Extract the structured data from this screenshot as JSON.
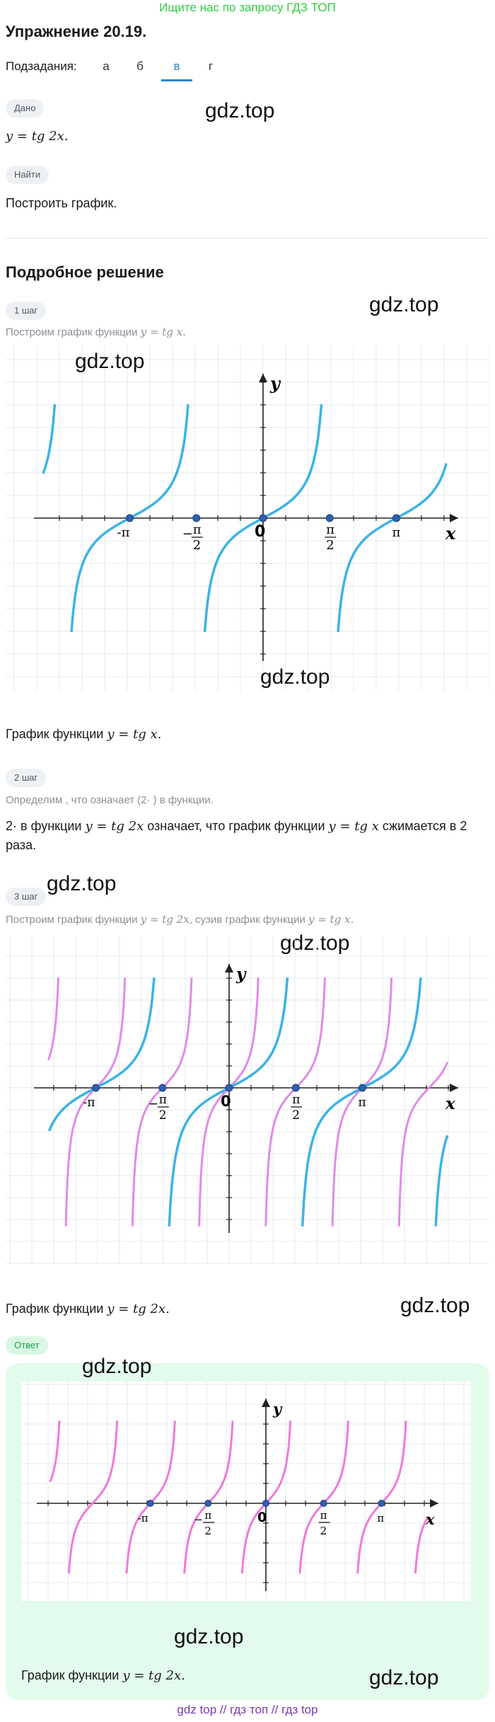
{
  "top_link": "Ищите нас по запросу ГДЗ ТОП",
  "title": "Упражнение 20.19.",
  "subtasks": {
    "label": "Подзадания:",
    "items": [
      "а",
      "б",
      "в",
      "г"
    ],
    "active": "в"
  },
  "given": {
    "label": "Дано",
    "formula": "y = tg 2x."
  },
  "find": {
    "label": "Найти",
    "text": "Построить график."
  },
  "solution_title": "Подробное решение",
  "watermark": "gdz.top",
  "steps": [
    {
      "label": "1 шаг",
      "text": "Построим график функции",
      "formula": "y = tg x.",
      "caption": "График функции",
      "caption_formula": "y = tg x."
    },
    {
      "label": "2 шаг",
      "text_a": "Определим , что означает (2· ) в функции.",
      "line1_a": "2·",
      "line1_b": "в функции",
      "line1_f1": "y = tg 2x",
      "line1_c": "означает, что график функции",
      "line1_f2": "y = tg x",
      "line1_d": "сжимается в",
      "line1_num": "2",
      "line2": "раза."
    },
    {
      "label": "3 шаг",
      "text": "Построим график функции",
      "formula": "y = tg 2x",
      "text2": ", сузив график функции",
      "formula2": "y = tg x.",
      "caption": "График функции",
      "caption_formula": "y = tg 2x."
    }
  ],
  "answer": {
    "label": "Ответ",
    "caption": "График функции",
    "caption_formula": "y = tg 2x."
  },
  "footer": "gdz top  //  гдз топ  //  гдз top",
  "axes": {
    "x": "x",
    "y": "y",
    "origin": "0",
    "pi": "π",
    "neg_pi": "-π",
    "minus": "−",
    "half_den": "2"
  },
  "colors": {
    "tgx": "#3bb3e6",
    "tg2x": "#e08be8",
    "answer": "#f07ad8",
    "point": "#2f5fb0",
    "grid": "#e4e8ee"
  },
  "chart_data": [
    {
      "type": "line",
      "series": [
        {
          "function": "tg x",
          "color": "#3bb3e6"
        }
      ],
      "marked_x": [
        "-π",
        "-π/2",
        "0",
        "π/2",
        "π"
      ]
    },
    {
      "type": "line",
      "series": [
        {
          "function": "tg x",
          "color": "#3bb3e6"
        },
        {
          "function": "tg 2x",
          "color": "#e08be8"
        }
      ],
      "marked_x": [
        "-π",
        "-π/2",
        "0",
        "π/2",
        "π"
      ]
    },
    {
      "type": "line",
      "series": [
        {
          "function": "tg 2x",
          "color": "#f07ad8"
        }
      ],
      "marked_x": [
        "-π",
        "-π/2",
        "0",
        "π/2",
        "π"
      ]
    }
  ]
}
